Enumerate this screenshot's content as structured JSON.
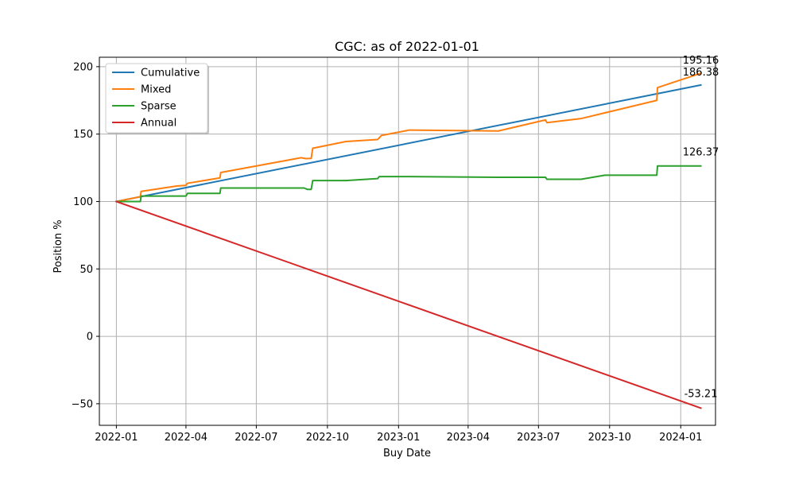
{
  "chart_data": {
    "type": "line",
    "title": "CGC: as of 2022-01-01",
    "xlabel": "Buy Date",
    "ylabel": "Position %",
    "x_ticks": [
      "2022-01",
      "2022-04",
      "2022-07",
      "2022-10",
      "2023-01",
      "2023-04",
      "2023-07",
      "2023-10",
      "2024-01"
    ],
    "y_ticks": [
      -50,
      0,
      50,
      100,
      150,
      200
    ],
    "xlim": [
      "2021-12-10",
      "2024-02-15"
    ],
    "ylim": [
      -66,
      207
    ],
    "grid": true,
    "legend_position": "top-left",
    "series": [
      {
        "name": "Cumulative",
        "color": "#1f77b4",
        "points": [
          [
            "2022-01-01",
            100
          ],
          [
            "2024-01-27",
            186.38
          ]
        ],
        "end_label": "186.38"
      },
      {
        "name": "Mixed",
        "color": "#ff7f0e",
        "points": [
          [
            "2022-01-01",
            100
          ],
          [
            "2022-02-01",
            103.5
          ],
          [
            "2022-02-02",
            107.5
          ],
          [
            "2022-03-20",
            111.5
          ],
          [
            "2022-04-01",
            112.0
          ],
          [
            "2022-04-03",
            113.5
          ],
          [
            "2022-05-15",
            117.5
          ],
          [
            "2022-05-16",
            121.5
          ],
          [
            "2022-08-28",
            132.5
          ],
          [
            "2022-09-03",
            131.8
          ],
          [
            "2022-09-10",
            132.0
          ],
          [
            "2022-09-12",
            139.5
          ],
          [
            "2022-10-25",
            144.5
          ],
          [
            "2022-12-05",
            146.0
          ],
          [
            "2022-12-10",
            149.0
          ],
          [
            "2023-01-15",
            153.0
          ],
          [
            "2023-05-10",
            152.3
          ],
          [
            "2023-07-10",
            160.5
          ],
          [
            "2023-07-12",
            158.5
          ],
          [
            "2023-08-25",
            161.5
          ],
          [
            "2023-12-01",
            175.0
          ],
          [
            "2023-12-02",
            184.5
          ],
          [
            "2024-01-27",
            195.16
          ]
        ],
        "end_label": "195.16"
      },
      {
        "name": "Sparse",
        "color": "#2ca02c",
        "points": [
          [
            "2022-01-01",
            100
          ],
          [
            "2022-02-01",
            100.0
          ],
          [
            "2022-02-02",
            104.0
          ],
          [
            "2022-04-01",
            104.0
          ],
          [
            "2022-04-03",
            106.0
          ],
          [
            "2022-05-15",
            106.0
          ],
          [
            "2022-05-16",
            110.0
          ],
          [
            "2022-09-01",
            110.0
          ],
          [
            "2022-09-05",
            109.0
          ],
          [
            "2022-09-10",
            109.0
          ],
          [
            "2022-09-12",
            115.5
          ],
          [
            "2022-10-25",
            115.5
          ],
          [
            "2022-12-05",
            117.0
          ],
          [
            "2022-12-07",
            118.5
          ],
          [
            "2023-01-15",
            118.5
          ],
          [
            "2023-05-10",
            118.0
          ],
          [
            "2023-07-10",
            118.0
          ],
          [
            "2023-07-12",
            116.5
          ],
          [
            "2023-08-25",
            116.5
          ],
          [
            "2023-09-25",
            119.5
          ],
          [
            "2023-12-01",
            119.5
          ],
          [
            "2023-12-02",
            126.37
          ],
          [
            "2024-01-27",
            126.37
          ]
        ],
        "end_label": "126.37"
      },
      {
        "name": "Annual",
        "color": "#d62728",
        "points": [
          [
            "2022-01-01",
            100
          ],
          [
            "2024-01-27",
            -53.21
          ]
        ],
        "end_label": "-53.21"
      }
    ]
  }
}
